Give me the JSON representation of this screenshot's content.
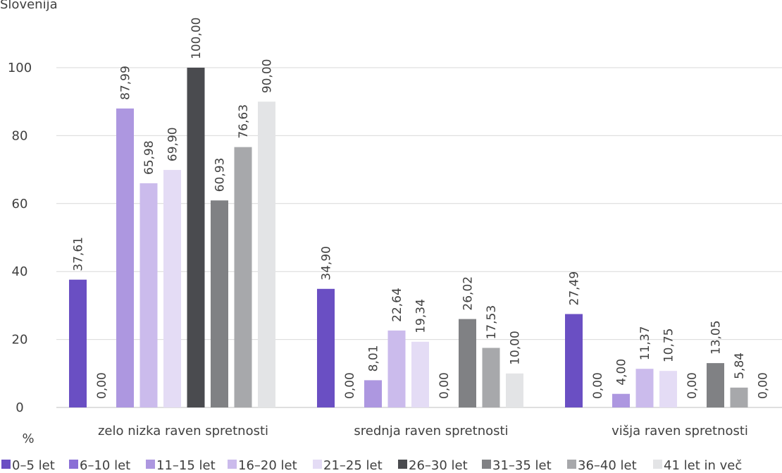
{
  "chart_data": {
    "type": "bar",
    "title": "Slovenija",
    "ylabel": "%",
    "ylim": [
      0,
      100
    ],
    "yticks": [
      0,
      20,
      40,
      60,
      80,
      100
    ],
    "categories": [
      "zelo nizka raven spretnosti",
      "srednja raven spretnosti",
      "višja raven spretnosti"
    ],
    "series": [
      {
        "name": "0–5 let",
        "color": "#6a4fc3",
        "values": [
          37.61,
          34.9,
          27.49
        ],
        "labels": [
          "37,61",
          "34,90",
          "27,49"
        ]
      },
      {
        "name": "6–10 let",
        "color": "#8a6fd6",
        "values": [
          0.0,
          0.0,
          0.0
        ],
        "labels": [
          "0,00",
          "0,00",
          "0,00"
        ]
      },
      {
        "name": "11–15 let",
        "color": "#ad97e0",
        "values": [
          87.99,
          8.01,
          4.0
        ],
        "labels": [
          "87,99",
          "8,01",
          "4,00"
        ]
      },
      {
        "name": "16–20 let",
        "color": "#cbbbec",
        "values": [
          65.98,
          22.64,
          11.37
        ],
        "labels": [
          "65,98",
          "22,64",
          "11,37"
        ]
      },
      {
        "name": "21–25 let",
        "color": "#e4dcf5",
        "values": [
          69.9,
          19.34,
          10.75
        ],
        "labels": [
          "69,90",
          "19,34",
          "10,75"
        ]
      },
      {
        "name": "26–30 let",
        "color": "#4a4b4f",
        "values": [
          100.0,
          0.0,
          0.0
        ],
        "labels": [
          "100,00",
          "0,00",
          "0,00"
        ]
      },
      {
        "name": "31–35 let",
        "color": "#808184",
        "values": [
          60.93,
          26.02,
          13.05
        ],
        "labels": [
          "60,93",
          "26,02",
          "13,05"
        ]
      },
      {
        "name": "36–40 let",
        "color": "#a7a8ab",
        "values": [
          76.63,
          17.53,
          5.84
        ],
        "labels": [
          "76,63",
          "17,53",
          "5,84"
        ]
      },
      {
        "name": "41 let in več",
        "color": "#e3e4e6",
        "values": [
          90.0,
          10.0,
          0.0
        ],
        "labels": [
          "90,00",
          "10,00",
          "0,00"
        ]
      }
    ],
    "grid": true,
    "legend": "bottom"
  }
}
